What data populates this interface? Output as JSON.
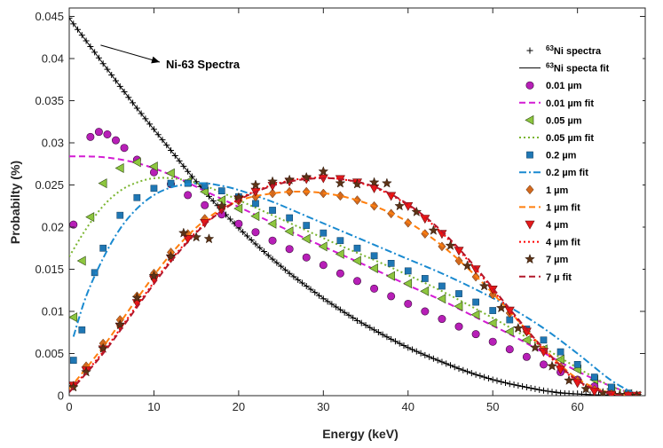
{
  "chart_data": {
    "type": "scatter",
    "title": "",
    "xlabel": "Energy (keV)",
    "ylabel": "Probabilty (%)",
    "xlim": [
      0,
      68
    ],
    "ylim": [
      0,
      0.046
    ],
    "xticks": [
      0,
      10,
      20,
      30,
      40,
      50,
      60
    ],
    "yticks": [
      0,
      0.005,
      0.01,
      0.015,
      0.02,
      0.025,
      0.03,
      0.035,
      0.04,
      0.045
    ],
    "xtick_labels": [
      "0",
      "10",
      "20",
      "30",
      "40",
      "50",
      "60"
    ],
    "ytick_labels": [
      "0",
      "0.005",
      "0.01",
      "0.015",
      "0.02",
      "0.025",
      "0.03",
      "0.035",
      "0.04",
      "0.045"
    ],
    "grid": false,
    "legend_position": "top-right",
    "annotation": {
      "text": "Ni-63 Spectra",
      "x": 12.5,
      "y": 0.0405,
      "arrow_to": [
        3.5,
        0.0417
      ]
    },
    "series": [
      {
        "name": "63Ni spectra",
        "legend_label": "Ni spectra",
        "legend_sup": "63",
        "kind": "marker",
        "marker": "plus",
        "color": "#000000",
        "x": [
          0,
          2,
          4,
          6,
          8,
          10,
          12,
          14,
          16,
          18,
          20,
          22,
          24,
          26,
          28,
          30,
          32,
          34,
          36,
          38,
          40,
          42,
          44,
          46,
          48,
          50,
          52,
          54,
          56,
          58,
          60,
          62,
          64,
          66,
          67
        ],
        "y": [
          0.0448,
          0.0421,
          0.0394,
          0.0367,
          0.0341,
          0.0316,
          0.0291,
          0.0266,
          0.0242,
          0.022,
          0.0199,
          0.018,
          0.0162,
          0.0145,
          0.013,
          0.0115,
          0.0102,
          0.0089,
          0.0078,
          0.0067,
          0.0057,
          0.0048,
          0.004,
          0.0032,
          0.0025,
          0.0019,
          0.0014,
          0.001,
          0.0006,
          0.0003,
          0.0002,
          0.0001,
          5e-05,
          2e-05,
          0.0
        ]
      },
      {
        "name": "63Ni specta fit",
        "legend_label": "Ni specta fit",
        "legend_sup": "63",
        "kind": "line",
        "dash": "solid",
        "color": "#000000",
        "x": [
          0,
          4,
          8,
          12,
          16,
          20,
          24,
          28,
          32,
          36,
          40,
          44,
          48,
          52,
          56,
          60,
          64,
          67
        ],
        "y": [
          0.0448,
          0.0394,
          0.0341,
          0.0291,
          0.0242,
          0.0199,
          0.0162,
          0.013,
          0.0102,
          0.0078,
          0.0057,
          0.004,
          0.0025,
          0.0014,
          0.0006,
          0.0002,
          5e-05,
          0.0
        ]
      },
      {
        "name": "0.01 µm",
        "kind": "marker",
        "marker": "circle",
        "color": "#b71fb7",
        "x": [
          0.5,
          2.5,
          3.5,
          4.5,
          5.5,
          6.5,
          8,
          10,
          12,
          14,
          16,
          18,
          20,
          22,
          24,
          26,
          28,
          30,
          32,
          34,
          36,
          38,
          40,
          42,
          44,
          46,
          48,
          50,
          52,
          54,
          56,
          58,
          60,
          62,
          64,
          66,
          67
        ],
        "y": [
          0.0203,
          0.0307,
          0.0313,
          0.031,
          0.0303,
          0.0294,
          0.028,
          0.0265,
          0.0251,
          0.0238,
          0.0226,
          0.0215,
          0.0204,
          0.0194,
          0.0184,
          0.0174,
          0.0164,
          0.0155,
          0.0145,
          0.0136,
          0.0127,
          0.0118,
          0.0109,
          0.01,
          0.0091,
          0.0082,
          0.0073,
          0.0064,
          0.0055,
          0.0046,
          0.0037,
          0.0028,
          0.0019,
          0.0011,
          0.0005,
          0.0002,
          0.0
        ]
      },
      {
        "name": "0.01 µm fit",
        "kind": "line",
        "dash": "dash",
        "color": "#d31bd3",
        "x": [
          0,
          4,
          8,
          12,
          16,
          20,
          24,
          28,
          32,
          36,
          40,
          44,
          48,
          52,
          56,
          60,
          64,
          67
        ],
        "y": [
          0.0284,
          0.0283,
          0.0276,
          0.0262,
          0.0243,
          0.0224,
          0.0205,
          0.0186,
          0.0168,
          0.015,
          0.0131,
          0.0113,
          0.0093,
          0.0073,
          0.0051,
          0.0029,
          0.0011,
          0.0001
        ]
      },
      {
        "name": "0.05 µm",
        "kind": "marker",
        "marker": "triangle-left",
        "color": "#8dc63f",
        "x": [
          0.5,
          1.5,
          2.5,
          4,
          6,
          8,
          10,
          12,
          14,
          16,
          18,
          20,
          22,
          24,
          26,
          28,
          30,
          32,
          34,
          36,
          38,
          40,
          42,
          44,
          46,
          48,
          50,
          52,
          54,
          56,
          58,
          60,
          62,
          64,
          66,
          67
        ],
        "y": [
          0.0093,
          0.016,
          0.0212,
          0.0252,
          0.027,
          0.0277,
          0.0272,
          0.0264,
          0.0254,
          0.0242,
          0.0232,
          0.0222,
          0.0213,
          0.0204,
          0.0195,
          0.0186,
          0.0177,
          0.0168,
          0.016,
          0.0151,
          0.0142,
          0.0133,
          0.0124,
          0.0115,
          0.0106,
          0.0096,
          0.0086,
          0.0076,
          0.0066,
          0.0055,
          0.0043,
          0.0031,
          0.0019,
          0.0008,
          0.0002,
          0.0
        ]
      },
      {
        "name": "0.05 µm fit",
        "kind": "line",
        "dash": "dot",
        "color": "#7ab52f",
        "x": [
          0,
          2,
          4,
          6,
          8,
          10,
          12,
          14,
          16,
          18,
          20,
          24,
          28,
          32,
          36,
          40,
          44,
          48,
          52,
          56,
          60,
          64,
          67
        ],
        "y": [
          0.0165,
          0.0198,
          0.0225,
          0.0243,
          0.0253,
          0.0258,
          0.0258,
          0.0255,
          0.0249,
          0.0241,
          0.0232,
          0.0214,
          0.0196,
          0.0178,
          0.0161,
          0.0143,
          0.0124,
          0.0103,
          0.0081,
          0.0057,
          0.0033,
          0.0011,
          0.0001
        ]
      },
      {
        "name": "0.2 µm",
        "kind": "marker",
        "marker": "square",
        "color": "#1f77b4",
        "x": [
          0.5,
          1.5,
          3,
          4,
          6,
          8,
          10,
          12,
          14,
          16,
          18,
          20,
          22,
          24,
          26,
          28,
          30,
          32,
          34,
          36,
          38,
          40,
          42,
          44,
          46,
          48,
          50,
          52,
          54,
          56,
          58,
          60,
          62,
          64,
          66,
          67
        ],
        "y": [
          0.0042,
          0.0078,
          0.0146,
          0.0175,
          0.0214,
          0.0235,
          0.0246,
          0.0252,
          0.0252,
          0.0249,
          0.0243,
          0.0236,
          0.0228,
          0.022,
          0.0211,
          0.0202,
          0.0193,
          0.0184,
          0.0175,
          0.0166,
          0.0157,
          0.0148,
          0.0139,
          0.013,
          0.0121,
          0.0111,
          0.0101,
          0.009,
          0.0079,
          0.0066,
          0.0052,
          0.0037,
          0.0022,
          0.001,
          0.0003,
          0.0
        ]
      },
      {
        "name": "0.2 µm fit",
        "kind": "line",
        "dash": "dashdot",
        "color": "#1a8ad0",
        "x": [
          0.5,
          2,
          4,
          6,
          8,
          10,
          12,
          14,
          16,
          18,
          20,
          24,
          28,
          32,
          36,
          40,
          44,
          48,
          52,
          56,
          60,
          64,
          67
        ],
        "y": [
          0.007,
          0.0118,
          0.0163,
          0.0198,
          0.0222,
          0.0238,
          0.0247,
          0.0251,
          0.0252,
          0.0249,
          0.0244,
          0.023,
          0.0213,
          0.0196,
          0.0179,
          0.0162,
          0.0145,
          0.0126,
          0.0105,
          0.008,
          0.005,
          0.0018,
          0.0001
        ]
      },
      {
        "name": "1 µm",
        "kind": "marker",
        "marker": "diamond",
        "color": "#d2691e",
        "x": [
          0.5,
          2,
          4,
          6,
          8,
          10,
          12,
          14,
          16,
          18,
          20,
          22,
          24,
          26,
          28,
          30,
          32,
          34,
          36,
          38,
          40,
          42,
          44,
          46,
          48,
          50,
          52,
          54,
          56,
          58,
          60,
          62,
          64,
          66,
          67
        ],
        "y": [
          0.0012,
          0.0035,
          0.0062,
          0.009,
          0.0118,
          0.0145,
          0.017,
          0.0192,
          0.021,
          0.0222,
          0.0231,
          0.0236,
          0.024,
          0.0242,
          0.0242,
          0.024,
          0.0237,
          0.0232,
          0.0225,
          0.0216,
          0.0205,
          0.0192,
          0.0177,
          0.016,
          0.0141,
          0.012,
          0.0098,
          0.0076,
          0.0054,
          0.0034,
          0.0018,
          0.0007,
          0.0002,
          5e-05,
          0.0
        ]
      },
      {
        "name": "1 µm fit",
        "kind": "line",
        "dash": "dash",
        "color": "#ff7f0e",
        "x": [
          0,
          4,
          8,
          12,
          16,
          20,
          24,
          28,
          32,
          36,
          40,
          44,
          48,
          52,
          56,
          60,
          64,
          67
        ],
        "y": [
          0.0008,
          0.0058,
          0.0115,
          0.0168,
          0.0208,
          0.0231,
          0.024,
          0.0242,
          0.0237,
          0.0225,
          0.0206,
          0.0178,
          0.0142,
          0.01,
          0.0056,
          0.002,
          0.0003,
          0.0
        ]
      },
      {
        "name": "4 µm",
        "kind": "marker",
        "marker": "triangle-down",
        "color": "#e31a1c",
        "x": [
          0.5,
          2,
          4,
          6,
          8,
          10,
          12,
          14,
          16,
          18,
          20,
          22,
          24,
          26,
          28,
          30,
          32,
          34,
          36,
          38,
          40,
          42,
          44,
          46,
          48,
          50,
          52,
          54,
          56,
          58,
          60,
          62,
          64,
          66,
          67
        ],
        "y": [
          0.0012,
          0.003,
          0.0055,
          0.0082,
          0.011,
          0.0138,
          0.0163,
          0.0186,
          0.0205,
          0.0221,
          0.0233,
          0.0242,
          0.0249,
          0.0254,
          0.0257,
          0.0258,
          0.0257,
          0.0253,
          0.0246,
          0.0237,
          0.0225,
          0.021,
          0.0192,
          0.0172,
          0.015,
          0.0126,
          0.0101,
          0.0076,
          0.0052,
          0.0031,
          0.0015,
          0.0005,
          0.0001,
          0.0,
          0.0
        ]
      },
      {
        "name": "4 µm fit",
        "kind": "line",
        "dash": "dot",
        "color": "#ff0000",
        "x": [
          0,
          4,
          8,
          12,
          16,
          20,
          24,
          28,
          32,
          36,
          40,
          44,
          48,
          52,
          56,
          60,
          64,
          67
        ],
        "y": [
          0.0005,
          0.0052,
          0.0107,
          0.0161,
          0.0204,
          0.0233,
          0.025,
          0.0258,
          0.0257,
          0.0247,
          0.0226,
          0.0193,
          0.015,
          0.0101,
          0.0054,
          0.0017,
          0.0002,
          0.0
        ]
      },
      {
        "name": "7 µm",
        "kind": "marker",
        "marker": "star",
        "color": "#5c3317",
        "x": [
          0.5,
          2,
          4,
          6,
          8,
          10,
          12,
          13.5,
          15,
          16.5,
          18,
          20,
          22,
          24,
          26,
          28,
          30,
          32,
          34,
          36,
          37.5,
          39,
          41,
          43,
          45,
          47,
          49,
          51,
          53,
          55,
          57,
          59,
          61,
          63,
          65,
          67
        ],
        "y": [
          0.001,
          0.0028,
          0.0056,
          0.0084,
          0.0116,
          0.0142,
          0.0165,
          0.0193,
          0.0188,
          0.0186,
          0.0225,
          0.0235,
          0.025,
          0.0254,
          0.0256,
          0.0259,
          0.0266,
          0.0252,
          0.0251,
          0.0253,
          0.0252,
          0.0225,
          0.0218,
          0.0196,
          0.0178,
          0.0154,
          0.013,
          0.0104,
          0.008,
          0.0057,
          0.0035,
          0.0018,
          0.0008,
          0.0003,
          0.0001,
          0.0
        ]
      },
      {
        "name": "7 µ fit",
        "kind": "line",
        "dash": "dash",
        "color": "#b2182b",
        "x": [
          0,
          4,
          8,
          12,
          16,
          20,
          24,
          28,
          32,
          36,
          40,
          44,
          48,
          52,
          56,
          60,
          64,
          67
        ],
        "y": [
          0.0004,
          0.005,
          0.0105,
          0.0159,
          0.0203,
          0.0232,
          0.0249,
          0.0257,
          0.0257,
          0.0248,
          0.0227,
          0.0195,
          0.0152,
          0.0103,
          0.0056,
          0.0018,
          0.0002,
          0.0
        ]
      }
    ]
  }
}
